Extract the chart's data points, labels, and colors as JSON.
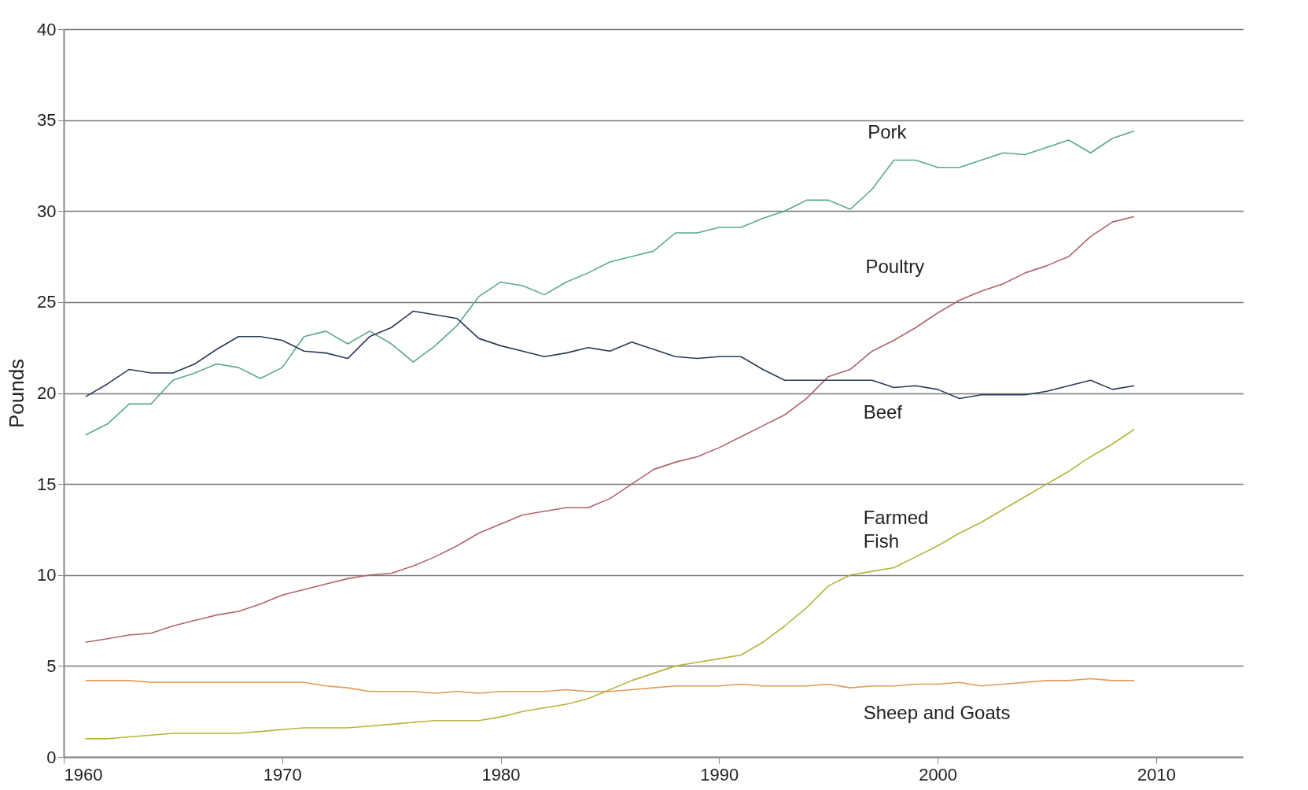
{
  "chart_data": {
    "type": "line",
    "ylabel": "Pounds",
    "xlim": [
      1960,
      2014
    ],
    "xticks": [
      1960,
      1970,
      1980,
      1990,
      2000,
      2010
    ],
    "ylim": [
      0,
      40
    ],
    "yticks": [
      0,
      5,
      10,
      15,
      20,
      25,
      30,
      35,
      40
    ],
    "grid": "y",
    "x": [
      1961,
      1962,
      1963,
      1964,
      1965,
      1966,
      1967,
      1968,
      1969,
      1970,
      1971,
      1972,
      1973,
      1974,
      1975,
      1976,
      1977,
      1978,
      1979,
      1980,
      1981,
      1982,
      1983,
      1984,
      1985,
      1986,
      1987,
      1988,
      1989,
      1990,
      1991,
      1992,
      1993,
      1994,
      1995,
      1996,
      1997,
      1998,
      1999,
      2000,
      2001,
      2002,
      2003,
      2004,
      2005,
      2006,
      2007,
      2008,
      2009
    ],
    "series": [
      {
        "name": "Pork",
        "color": "#5aa88e",
        "values": [
          17.7,
          18.3,
          19.4,
          19.4,
          20.7,
          21.1,
          21.6,
          21.4,
          20.8,
          21.4,
          23.1,
          23.4,
          22.7,
          23.4,
          22.7,
          21.7,
          22.6,
          23.7,
          25.3,
          26.1,
          25.9,
          25.4,
          26.1,
          26.6,
          27.2,
          27.5,
          27.8,
          28.8,
          28.8,
          29.1,
          29.1,
          29.6,
          30.0,
          30.6,
          30.6,
          30.1,
          31.2,
          32.8,
          32.8,
          32.4,
          32.4,
          32.8,
          33.2,
          33.1,
          33.5,
          33.9,
          33.2,
          34.0,
          34.4
        ]
      },
      {
        "name": "Poultry",
        "color": "#b0646c",
        "values": [
          6.3,
          6.5,
          6.7,
          6.8,
          7.2,
          7.5,
          7.8,
          8.0,
          8.4,
          8.9,
          9.2,
          9.5,
          9.8,
          10.0,
          10.1,
          10.5,
          11.0,
          11.6,
          12.3,
          12.8,
          13.3,
          13.5,
          13.7,
          13.7,
          14.2,
          15.0,
          15.8,
          16.2,
          16.5,
          17.0,
          17.6,
          18.2,
          18.8,
          19.7,
          20.9,
          21.3,
          22.3,
          22.9,
          23.6,
          24.4,
          25.1,
          25.6,
          26.0,
          26.6,
          27.0,
          27.5,
          28.6,
          29.4,
          29.7
        ]
      },
      {
        "name": "Beef",
        "color": "#2b3a58",
        "values": [
          19.8,
          20.5,
          21.3,
          21.1,
          21.1,
          21.6,
          22.4,
          23.1,
          23.1,
          22.9,
          22.3,
          22.2,
          21.9,
          23.1,
          23.6,
          24.5,
          24.3,
          24.1,
          23.0,
          22.6,
          22.3,
          22.0,
          22.2,
          22.5,
          22.3,
          22.8,
          22.4,
          22.0,
          21.9,
          22.0,
          22.0,
          21.3,
          20.7,
          20.7,
          20.7,
          20.7,
          20.7,
          20.3,
          20.4,
          20.2,
          19.7,
          19.9,
          19.9,
          19.9,
          20.1,
          20.4,
          20.7,
          20.2,
          20.4
        ]
      },
      {
        "name": "Farmed Fish",
        "color": "#b5b43c",
        "values": [
          1.0,
          1.0,
          1.1,
          1.2,
          1.3,
          1.3,
          1.3,
          1.3,
          1.4,
          1.5,
          1.6,
          1.6,
          1.6,
          1.7,
          1.8,
          1.9,
          2.0,
          2.0,
          2.0,
          2.2,
          2.5,
          2.7,
          2.9,
          3.2,
          3.7,
          4.2,
          4.6,
          5.0,
          5.2,
          5.4,
          5.6,
          6.3,
          7.2,
          8.2,
          9.4,
          10.0,
          10.2,
          10.4,
          11.0,
          11.6,
          12.3,
          12.9,
          13.6,
          14.3,
          15.0,
          15.7,
          16.5,
          17.2,
          18.0
        ]
      },
      {
        "name": "Sheep and Goats",
        "color": "#e39a55",
        "values": [
          4.2,
          4.2,
          4.2,
          4.1,
          4.1,
          4.1,
          4.1,
          4.1,
          4.1,
          4.1,
          4.1,
          3.9,
          3.8,
          3.6,
          3.6,
          3.6,
          3.5,
          3.6,
          3.5,
          3.6,
          3.6,
          3.6,
          3.7,
          3.6,
          3.6,
          3.7,
          3.8,
          3.9,
          3.9,
          3.9,
          4.0,
          3.9,
          3.9,
          3.9,
          4.0,
          3.8,
          3.9,
          3.9,
          4.0,
          4.0,
          4.1,
          3.9,
          4.0,
          4.1,
          4.2,
          4.2,
          4.3,
          4.2,
          4.2
        ]
      }
    ]
  }
}
